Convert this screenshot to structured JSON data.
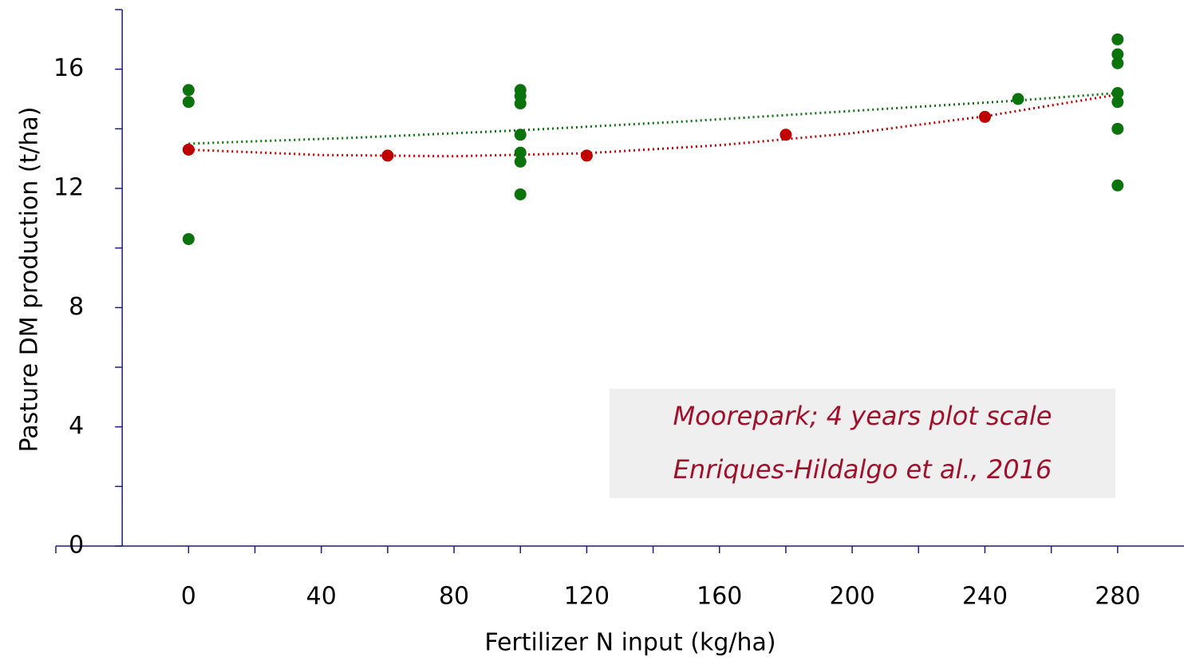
{
  "chart_data": {
    "type": "scatter",
    "xlabel": "Fertilizer N input (kg/ha)",
    "ylabel": "Pasture DM production (t/ha)",
    "annotation": [
      "Moorepark; 4 years plot scale",
      "Enriques-Hildalgo et al., 2016"
    ],
    "xlim": [
      -40,
      300
    ],
    "ylim": [
      0,
      18
    ],
    "xticks": [
      0,
      40,
      80,
      120,
      160,
      200,
      240,
      280
    ],
    "xminor_ticks": [
      -40,
      20,
      60,
      100,
      140,
      180,
      220,
      260
    ],
    "yticks": [
      0,
      4,
      8,
      12,
      16
    ],
    "yminor_ticks": [
      2,
      6,
      10,
      14,
      18
    ],
    "y_axis_crossing": -20,
    "axis_color": "#1c1c80",
    "series": [
      {
        "color": "#0b730b",
        "x": [
          0,
          0,
          0,
          100,
          100,
          100,
          100,
          100,
          100,
          100,
          250,
          280,
          280,
          280,
          280,
          280,
          280,
          280
        ],
        "values": [
          15.3,
          14.9,
          10.3,
          15.3,
          15.1,
          14.85,
          13.8,
          13.2,
          12.9,
          11.8,
          15.0,
          17.0,
          16.5,
          16.2,
          15.2,
          14.9,
          14.0,
          12.1
        ]
      },
      {
        "color": "#c00000",
        "x": [
          0,
          60,
          120,
          180,
          240
        ],
        "values": [
          13.3,
          13.1,
          13.1,
          13.8,
          14.4
        ]
      }
    ],
    "trendlines": [
      {
        "color": "#0b730b",
        "x": [
          0,
          50,
          100,
          150,
          200,
          250,
          280
        ],
        "values": [
          13.5,
          13.7,
          13.95,
          14.25,
          14.6,
          14.95,
          15.2
        ]
      },
      {
        "color": "#c00000",
        "x": [
          0,
          40,
          80,
          120,
          160,
          200,
          240,
          280
        ],
        "values": [
          13.3,
          13.12,
          13.08,
          13.18,
          13.45,
          13.85,
          14.42,
          15.15
        ]
      }
    ]
  }
}
